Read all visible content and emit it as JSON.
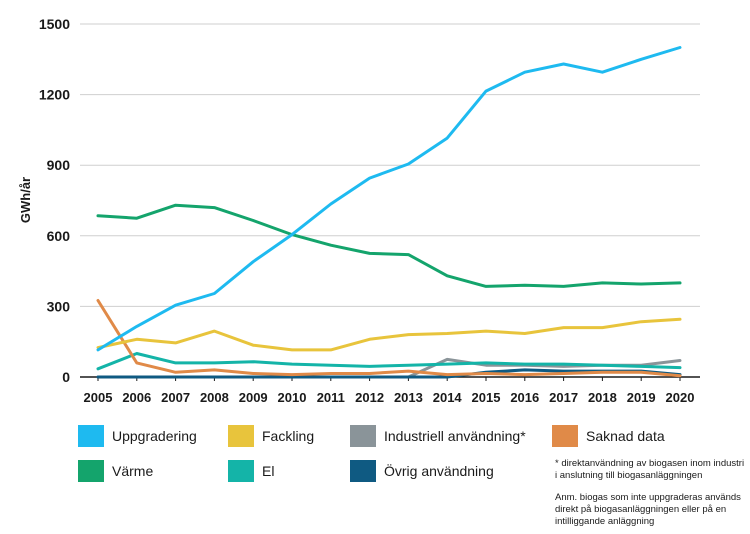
{
  "chart_data": {
    "type": "line",
    "title": "",
    "xlabel": "",
    "ylabel": "GWh/år",
    "ylim": [
      0,
      1500
    ],
    "yticks": [
      0,
      300,
      600,
      900,
      1200,
      1500
    ],
    "x": [
      "2005",
      "2006",
      "2007",
      "2008",
      "2009",
      "2010",
      "2011",
      "2012",
      "2013",
      "2014",
      "2015",
      "2016",
      "2017",
      "2018",
      "2019",
      "2020"
    ],
    "grid": "horizontal",
    "legend_position": "bottom",
    "series": [
      {
        "name": "Uppgradering",
        "color": "#1ebaf0",
        "values": [
          115,
          215,
          305,
          355,
          490,
          605,
          735,
          845,
          905,
          1015,
          1215,
          1295,
          1330,
          1295,
          1350,
          1400
        ]
      },
      {
        "name": "Värme",
        "color": "#14a46c",
        "values": [
          685,
          675,
          730,
          720,
          665,
          605,
          560,
          525,
          520,
          430,
          385,
          390,
          385,
          400,
          395,
          400
        ]
      },
      {
        "name": "Fackling",
        "color": "#e8c43c",
        "values": [
          125,
          160,
          145,
          195,
          135,
          115,
          115,
          160,
          180,
          185,
          195,
          185,
          210,
          210,
          235,
          245
        ]
      },
      {
        "name": "El",
        "color": "#14b4a8",
        "values": [
          35,
          100,
          60,
          60,
          65,
          55,
          50,
          45,
          50,
          55,
          60,
          55,
          55,
          50,
          45,
          40
        ]
      },
      {
        "name": "Industriell användning*",
        "color": "#8a9499",
        "values": [
          0,
          0,
          0,
          0,
          0,
          0,
          0,
          0,
          0,
          75,
          50,
          50,
          45,
          50,
          50,
          70
        ]
      },
      {
        "name": "Saknad data",
        "color": "#e08a48",
        "values": [
          325,
          60,
          20,
          30,
          15,
          10,
          15,
          15,
          25,
          10,
          15,
          10,
          15,
          20,
          20,
          5
        ]
      },
      {
        "name": "Övrig användning",
        "color": "#0f5a82",
        "values": [
          0,
          0,
          0,
          0,
          0,
          0,
          0,
          0,
          0,
          0,
          20,
          30,
          25,
          25,
          25,
          10
        ]
      }
    ]
  },
  "notes": {
    "footnote": "* direktanvändning av biogasen inom industri i anslutning till biogasanläggningen",
    "remark": "Anm. biogas som inte uppgraderas används direkt på biogasanläggningen eller på en intilliggande anläggning"
  }
}
